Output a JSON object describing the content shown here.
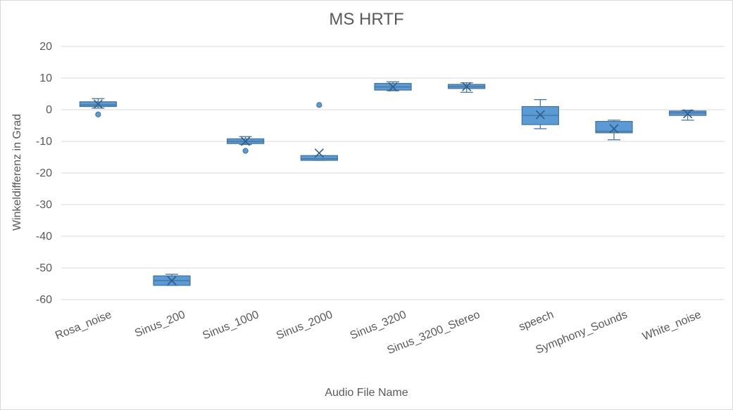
{
  "chart_data": {
    "type": "box",
    "title": "MS HRTF",
    "xlabel": "Audio File Name",
    "ylabel": "Winkeldifferenz in Grad",
    "ylim": [
      -60,
      20
    ],
    "yticks": [
      20,
      10,
      0,
      -10,
      -20,
      -30,
      -40,
      -50,
      -60
    ],
    "grid": true,
    "colors": {
      "box_fill": "#5b9bd5",
      "box_stroke": "#41719c",
      "grid": "#d9d9d9",
      "text": "#595959"
    },
    "categories": [
      "Rosa_noise",
      "Sinus_200",
      "Sinus_1000",
      "Sinus_2000",
      "Sinus_3200",
      "Sinus_3200_Stereo",
      "speech",
      "Symphony_Sounds",
      "White_noise"
    ],
    "boxes": [
      {
        "min": 0.5,
        "q1": 1.0,
        "median": 1.5,
        "q3": 2.5,
        "max": 3.5,
        "mean": 1.8,
        "outliers": [
          -1.5
        ]
      },
      {
        "min": -55.5,
        "q1": -55.5,
        "median": -54.0,
        "q3": -52.5,
        "max": -52.0,
        "mean": -54.0,
        "outliers": []
      },
      {
        "min": -11.0,
        "q1": -10.7,
        "median": -10.0,
        "q3": -9.2,
        "max": -8.5,
        "mean": -10.0,
        "outliers": [
          -13.0
        ]
      },
      {
        "min": -16.0,
        "q1": -16.0,
        "median": -15.5,
        "q3": -14.5,
        "max": -14.5,
        "mean": -13.7,
        "outliers": [
          1.5
        ]
      },
      {
        "min": 6.0,
        "q1": 6.2,
        "median": 7.2,
        "q3": 8.3,
        "max": 8.8,
        "mean": 7.2,
        "outliers": []
      },
      {
        "min": 5.5,
        "q1": 6.7,
        "median": 7.3,
        "q3": 8.0,
        "max": 8.5,
        "mean": 7.3,
        "outliers": []
      },
      {
        "min": -6.0,
        "q1": -4.7,
        "median": -1.8,
        "q3": 1.0,
        "max": 3.2,
        "mean": -1.6,
        "outliers": []
      },
      {
        "min": -9.5,
        "q1": -7.3,
        "median": -6.8,
        "q3": -3.7,
        "max": -3.3,
        "mean": -6.0,
        "outliers": []
      },
      {
        "min": -3.3,
        "q1": -1.8,
        "median": -1.0,
        "q3": -0.4,
        "max": -0.2,
        "mean": -1.3,
        "outliers": []
      }
    ]
  }
}
